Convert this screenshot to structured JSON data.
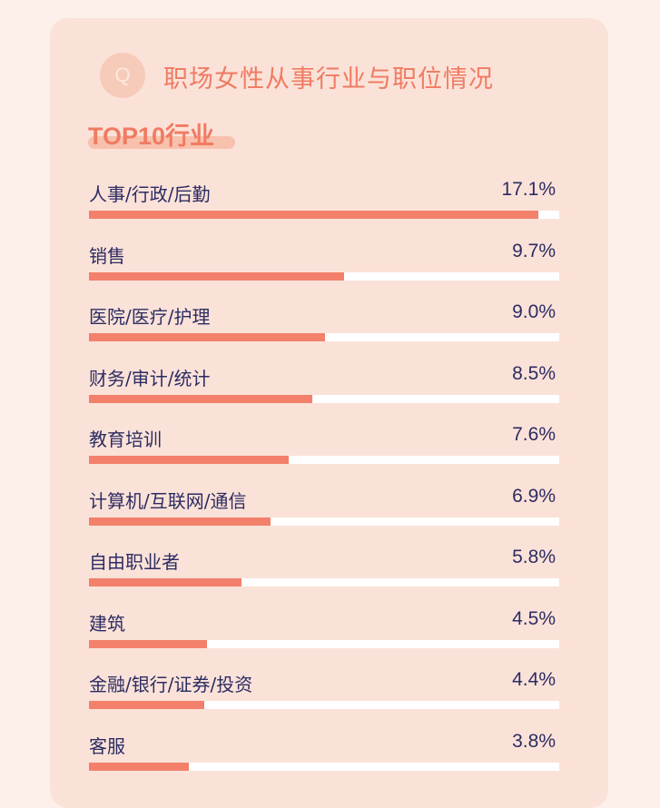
{
  "header": {
    "icon": "q-badge-icon",
    "q_letter": "Q",
    "title": "职场女性从事行业与职位情况"
  },
  "section": {
    "title": "TOP10行业"
  },
  "colors": {
    "background": "#fdf0ea",
    "card": "#fbe2d8",
    "accent": "#f07b62",
    "bar": "#f3806a",
    "track": "#ffffff",
    "text": "#2c2c63"
  },
  "chart_data": {
    "type": "bar",
    "orientation": "horizontal",
    "title": "TOP10行业",
    "categories": [
      "人事/行政/后勤",
      "销售",
      "医院/医疗/护理",
      "财务/审计/统计",
      "教育培训",
      "计算机/互联网/通信",
      "自由职业者",
      "建筑",
      "金融/银行/证券/投资",
      "客服"
    ],
    "values": [
      17.1,
      9.7,
      9.0,
      8.5,
      7.6,
      6.9,
      5.8,
      4.5,
      4.4,
      3.8
    ],
    "value_labels": [
      "17.1%",
      "9.7%",
      "9.0%",
      "8.5%",
      "7.6%",
      "6.9%",
      "5.8%",
      "4.5%",
      "4.4%",
      "3.8%"
    ],
    "unit": "%",
    "grid": false,
    "legend": "none"
  }
}
